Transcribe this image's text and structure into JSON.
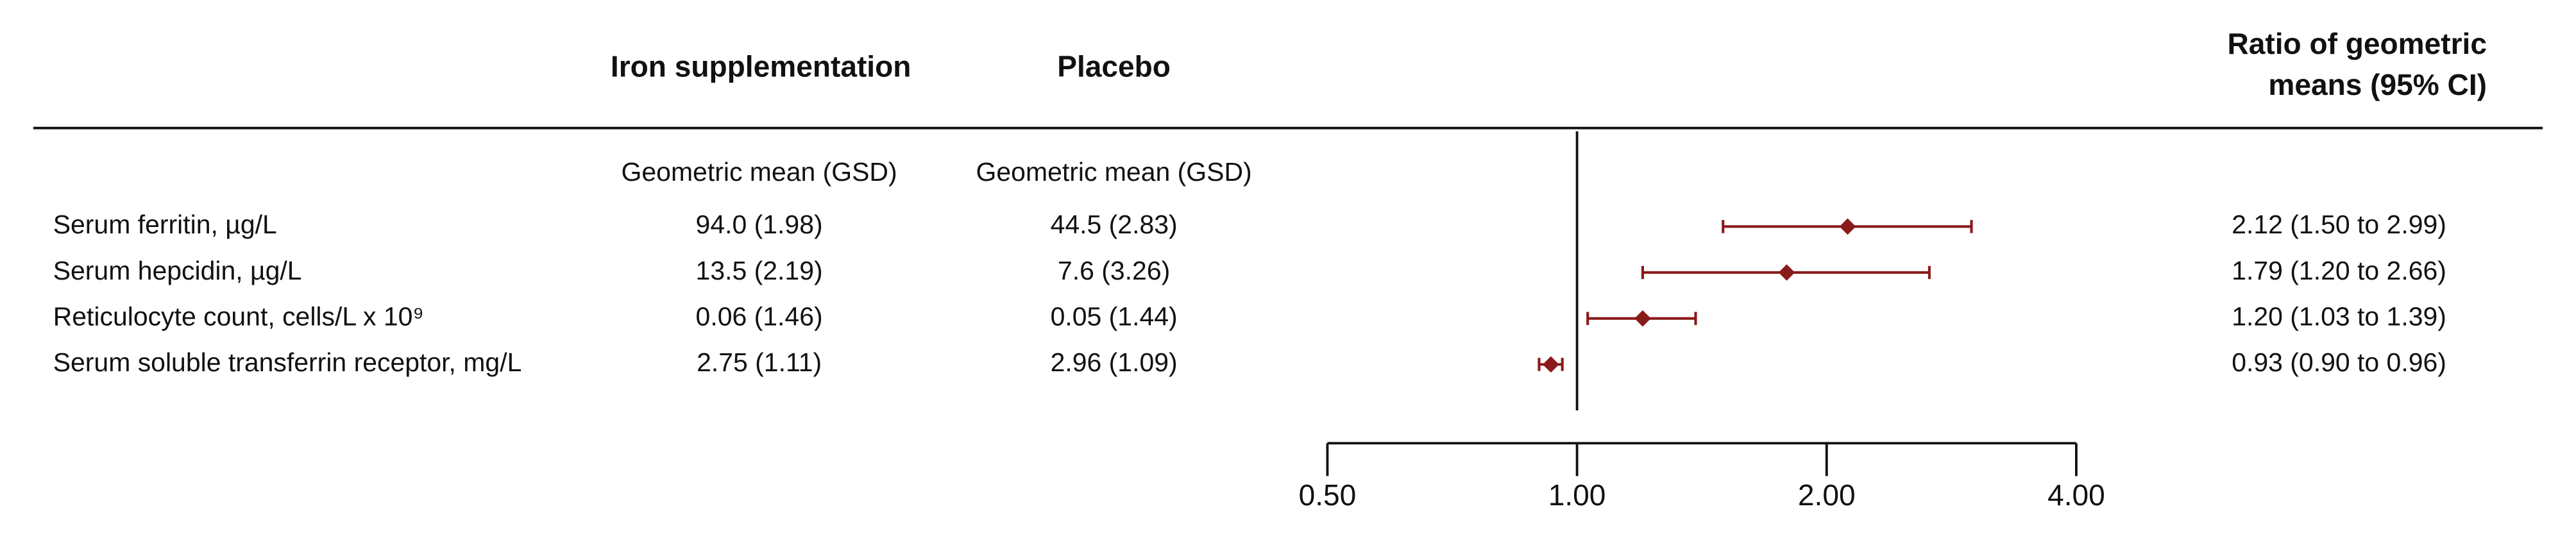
{
  "chart_data": {
    "type": "forest",
    "column_headers": [
      "Iron supplementation",
      "Placebo"
    ],
    "ratio_header": [
      "Ratio of geometric",
      "means (95% CI)"
    ],
    "column_subheaders": [
      "Geometric mean (GSD)",
      "Geometric mean (GSD)"
    ],
    "categories": [
      "Serum ferritin, µg/L",
      "Serum hepcidin, µg/L",
      "Reticulocyte count, cells/L x 10⁹",
      "Serum soluble transferrin receptor, mg/L"
    ],
    "iron_supplementation": [
      "94.0 (1.98)",
      "13.5 (2.19)",
      "0.06 (1.46)",
      "2.75 (1.11)"
    ],
    "placebo": [
      "44.5 (2.83)",
      "7.6 (3.26)",
      "0.05 (1.44)",
      "2.96 (1.09)"
    ],
    "values": [
      2.12,
      1.79,
      1.2,
      0.93
    ],
    "ci_lower": [
      1.5,
      1.2,
      1.03,
      0.9
    ],
    "ci_upper": [
      2.99,
      2.66,
      1.39,
      0.96
    ],
    "value_labels": [
      "2.12 (1.50 to 2.99)",
      "1.79 (1.20 to 2.66)",
      "1.20 (1.03 to 1.39)",
      "0.93 (0.90 to 0.96)"
    ],
    "color": "#8b1a1a",
    "log_scale": true,
    "null_line": 1,
    "xlim": [
      0.5,
      4
    ],
    "xticks": [
      {
        "value": 0.5,
        "label": "0.50"
      },
      {
        "value": 1,
        "label": "1.00"
      },
      {
        "value": 2,
        "label": "2.00"
      },
      {
        "value": 4,
        "label": "4.00"
      }
    ]
  }
}
